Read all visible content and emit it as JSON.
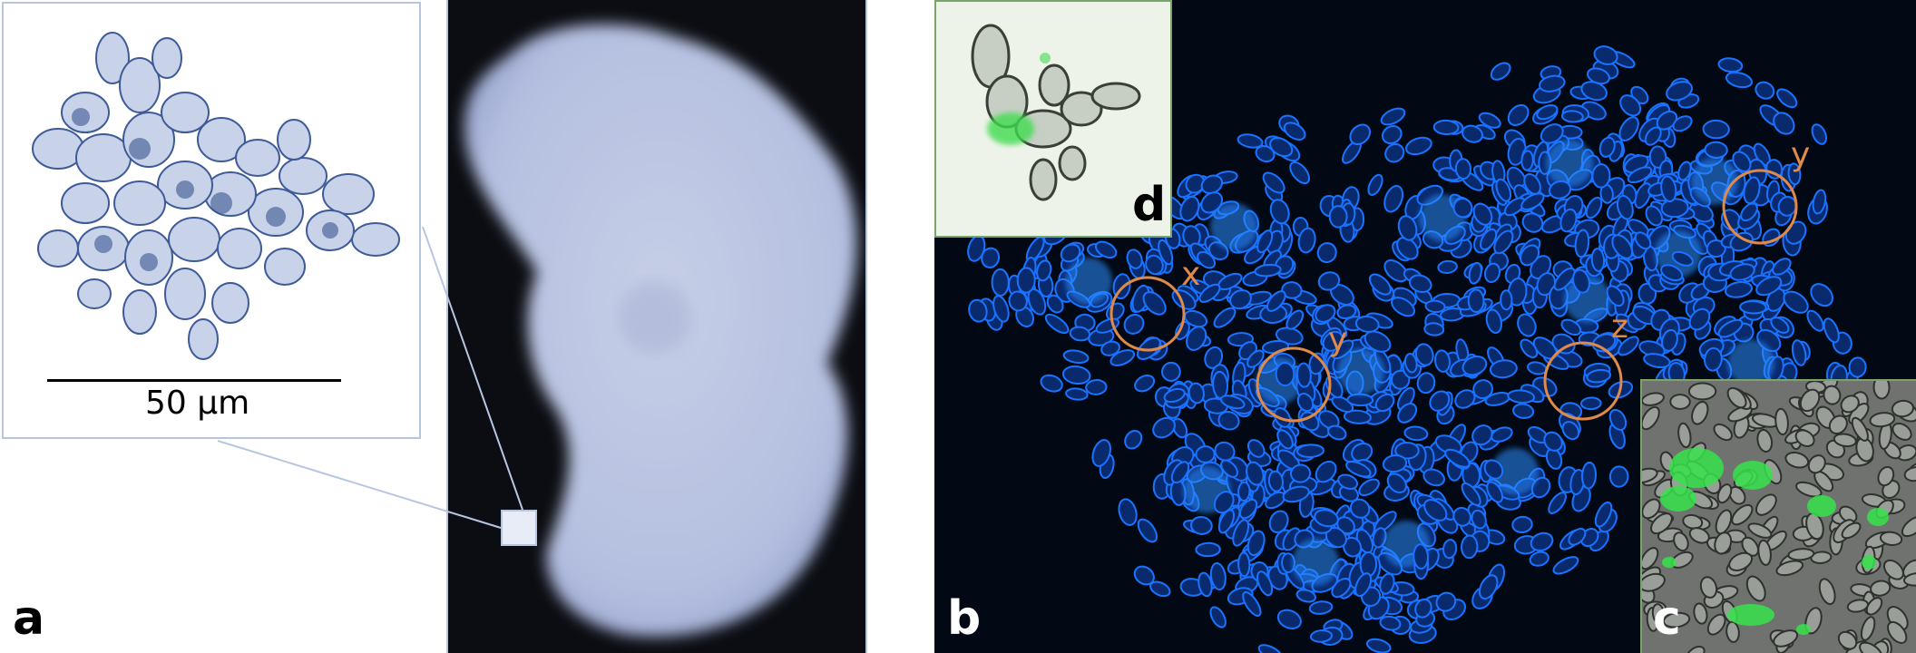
{
  "figure": {
    "panel_labels": {
      "a": "a",
      "b": "b",
      "c": "c",
      "d": "d"
    },
    "scale_bar": {
      "text": "50 µm"
    },
    "circle_labels": {
      "x": "x",
      "y1": "y",
      "y2": "y",
      "z": "z"
    },
    "colors": {
      "colony_white": "#dfe6f5",
      "fluorescent_blue": "#1a73ff",
      "annotation_orange": "#e08a4a",
      "gfp_green": "#35e24a",
      "inset_border_green": "#7aa56a",
      "inset_border_blue": "#b7c6e0"
    }
  }
}
